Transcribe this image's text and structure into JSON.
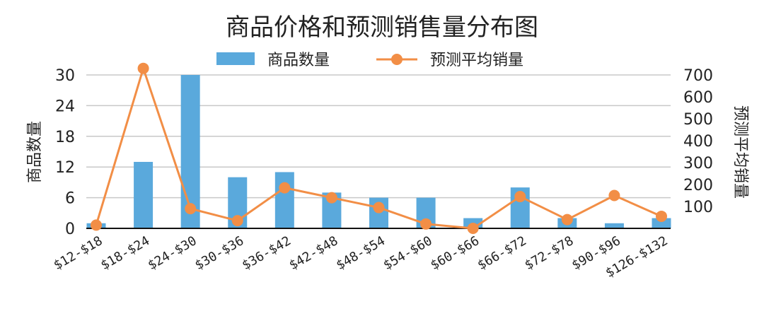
{
  "chart_data": {
    "type": "bar",
    "title": "商品价格和预测销售量分布图",
    "categories": [
      "$12-$18",
      "$18-$24",
      "$24-$30",
      "$30-$36",
      "$36-$42",
      "$42-$48",
      "$48-$54",
      "$54-$60",
      "$60-$66",
      "$66-$72",
      "$72-$78",
      "$90-$96",
      "$126-$132"
    ],
    "series": [
      {
        "name": "商品数量",
        "type": "bar",
        "axis": "left",
        "color": "#5aa9dc",
        "values": [
          1,
          13,
          30,
          10,
          11,
          7,
          6,
          6,
          2,
          8,
          2,
          1,
          2
        ]
      },
      {
        "name": "预测平均销量",
        "type": "line",
        "axis": "right",
        "color": "#f28e46",
        "values": [
          15,
          730,
          90,
          35,
          185,
          140,
          95,
          20,
          0,
          145,
          40,
          150,
          55
        ]
      }
    ],
    "ylabel": "商品数量",
    "ylim": [
      0,
      30
    ],
    "yticks": [
      0,
      6,
      12,
      18,
      24,
      30
    ],
    "y2label": "预测平均销量",
    "y2lim": [
      0,
      700
    ],
    "y2ticks": [
      100,
      200,
      300,
      400,
      500,
      600,
      700
    ],
    "grid": true,
    "legend": "top-center"
  }
}
